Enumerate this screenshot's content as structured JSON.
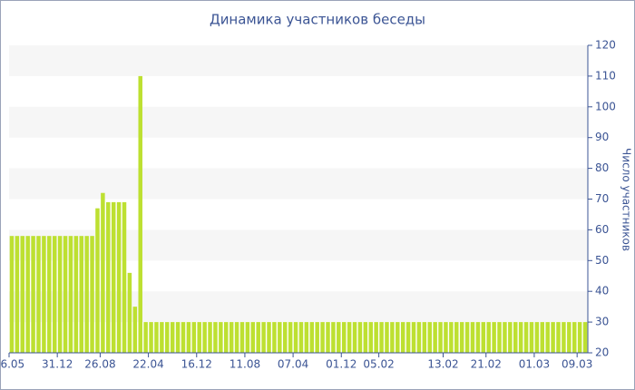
{
  "chart_data": {
    "type": "bar",
    "title": "Динамика участников беседы",
    "y_label": "Число участников",
    "categories": [
      "06.05",
      null,
      null,
      null,
      null,
      null,
      null,
      null,
      null,
      "31.12",
      null,
      null,
      null,
      null,
      null,
      null,
      null,
      "26.08",
      null,
      null,
      null,
      null,
      null,
      null,
      null,
      null,
      "22.04",
      null,
      null,
      null,
      null,
      null,
      null,
      null,
      null,
      "16.12",
      null,
      null,
      null,
      null,
      null,
      null,
      null,
      null,
      "11.08",
      null,
      null,
      null,
      null,
      null,
      null,
      null,
      null,
      "07.04",
      null,
      null,
      null,
      null,
      null,
      null,
      null,
      null,
      "01.12",
      null,
      null,
      null,
      null,
      null,
      null,
      "05.02",
      null,
      null,
      null,
      null,
      null,
      null,
      null,
      null,
      null,
      null,
      null,
      "13.02",
      null,
      null,
      null,
      null,
      null,
      null,
      null,
      "21.02",
      null,
      null,
      null,
      null,
      null,
      null,
      null,
      null,
      "01.03",
      null,
      null,
      null,
      null,
      null,
      null,
      null,
      "09.03",
      null
    ],
    "values": [
      58,
      58,
      58,
      58,
      58,
      58,
      58,
      58,
      58,
      58,
      58,
      58,
      58,
      58,
      58,
      58,
      67,
      72,
      69,
      69,
      69,
      69,
      46,
      35,
      110,
      30,
      30,
      30,
      30,
      30,
      30,
      30,
      30,
      30,
      30,
      30,
      30,
      30,
      30,
      30,
      30,
      30,
      30,
      30,
      30,
      30,
      30,
      30,
      30,
      30,
      30,
      30,
      30,
      30,
      30,
      30,
      30,
      30,
      30,
      30,
      30,
      30,
      30,
      30,
      30,
      30,
      30,
      30,
      30,
      30,
      30,
      30,
      30,
      30,
      30,
      30,
      30,
      30,
      30,
      30,
      30,
      30,
      30,
      30,
      30,
      30,
      30,
      30,
      30,
      30,
      30,
      30,
      30,
      30,
      30,
      30,
      30,
      30,
      30,
      30,
      30,
      30,
      30,
      30,
      30,
      30,
      30,
      30
    ],
    "color": "#bde031",
    "ylim": [
      20,
      120
    ],
    "yticks": [
      20,
      30,
      40,
      50,
      60,
      70,
      80,
      90,
      100,
      110,
      120
    ],
    "y_axis_side": "right",
    "grid_bands": true
  }
}
